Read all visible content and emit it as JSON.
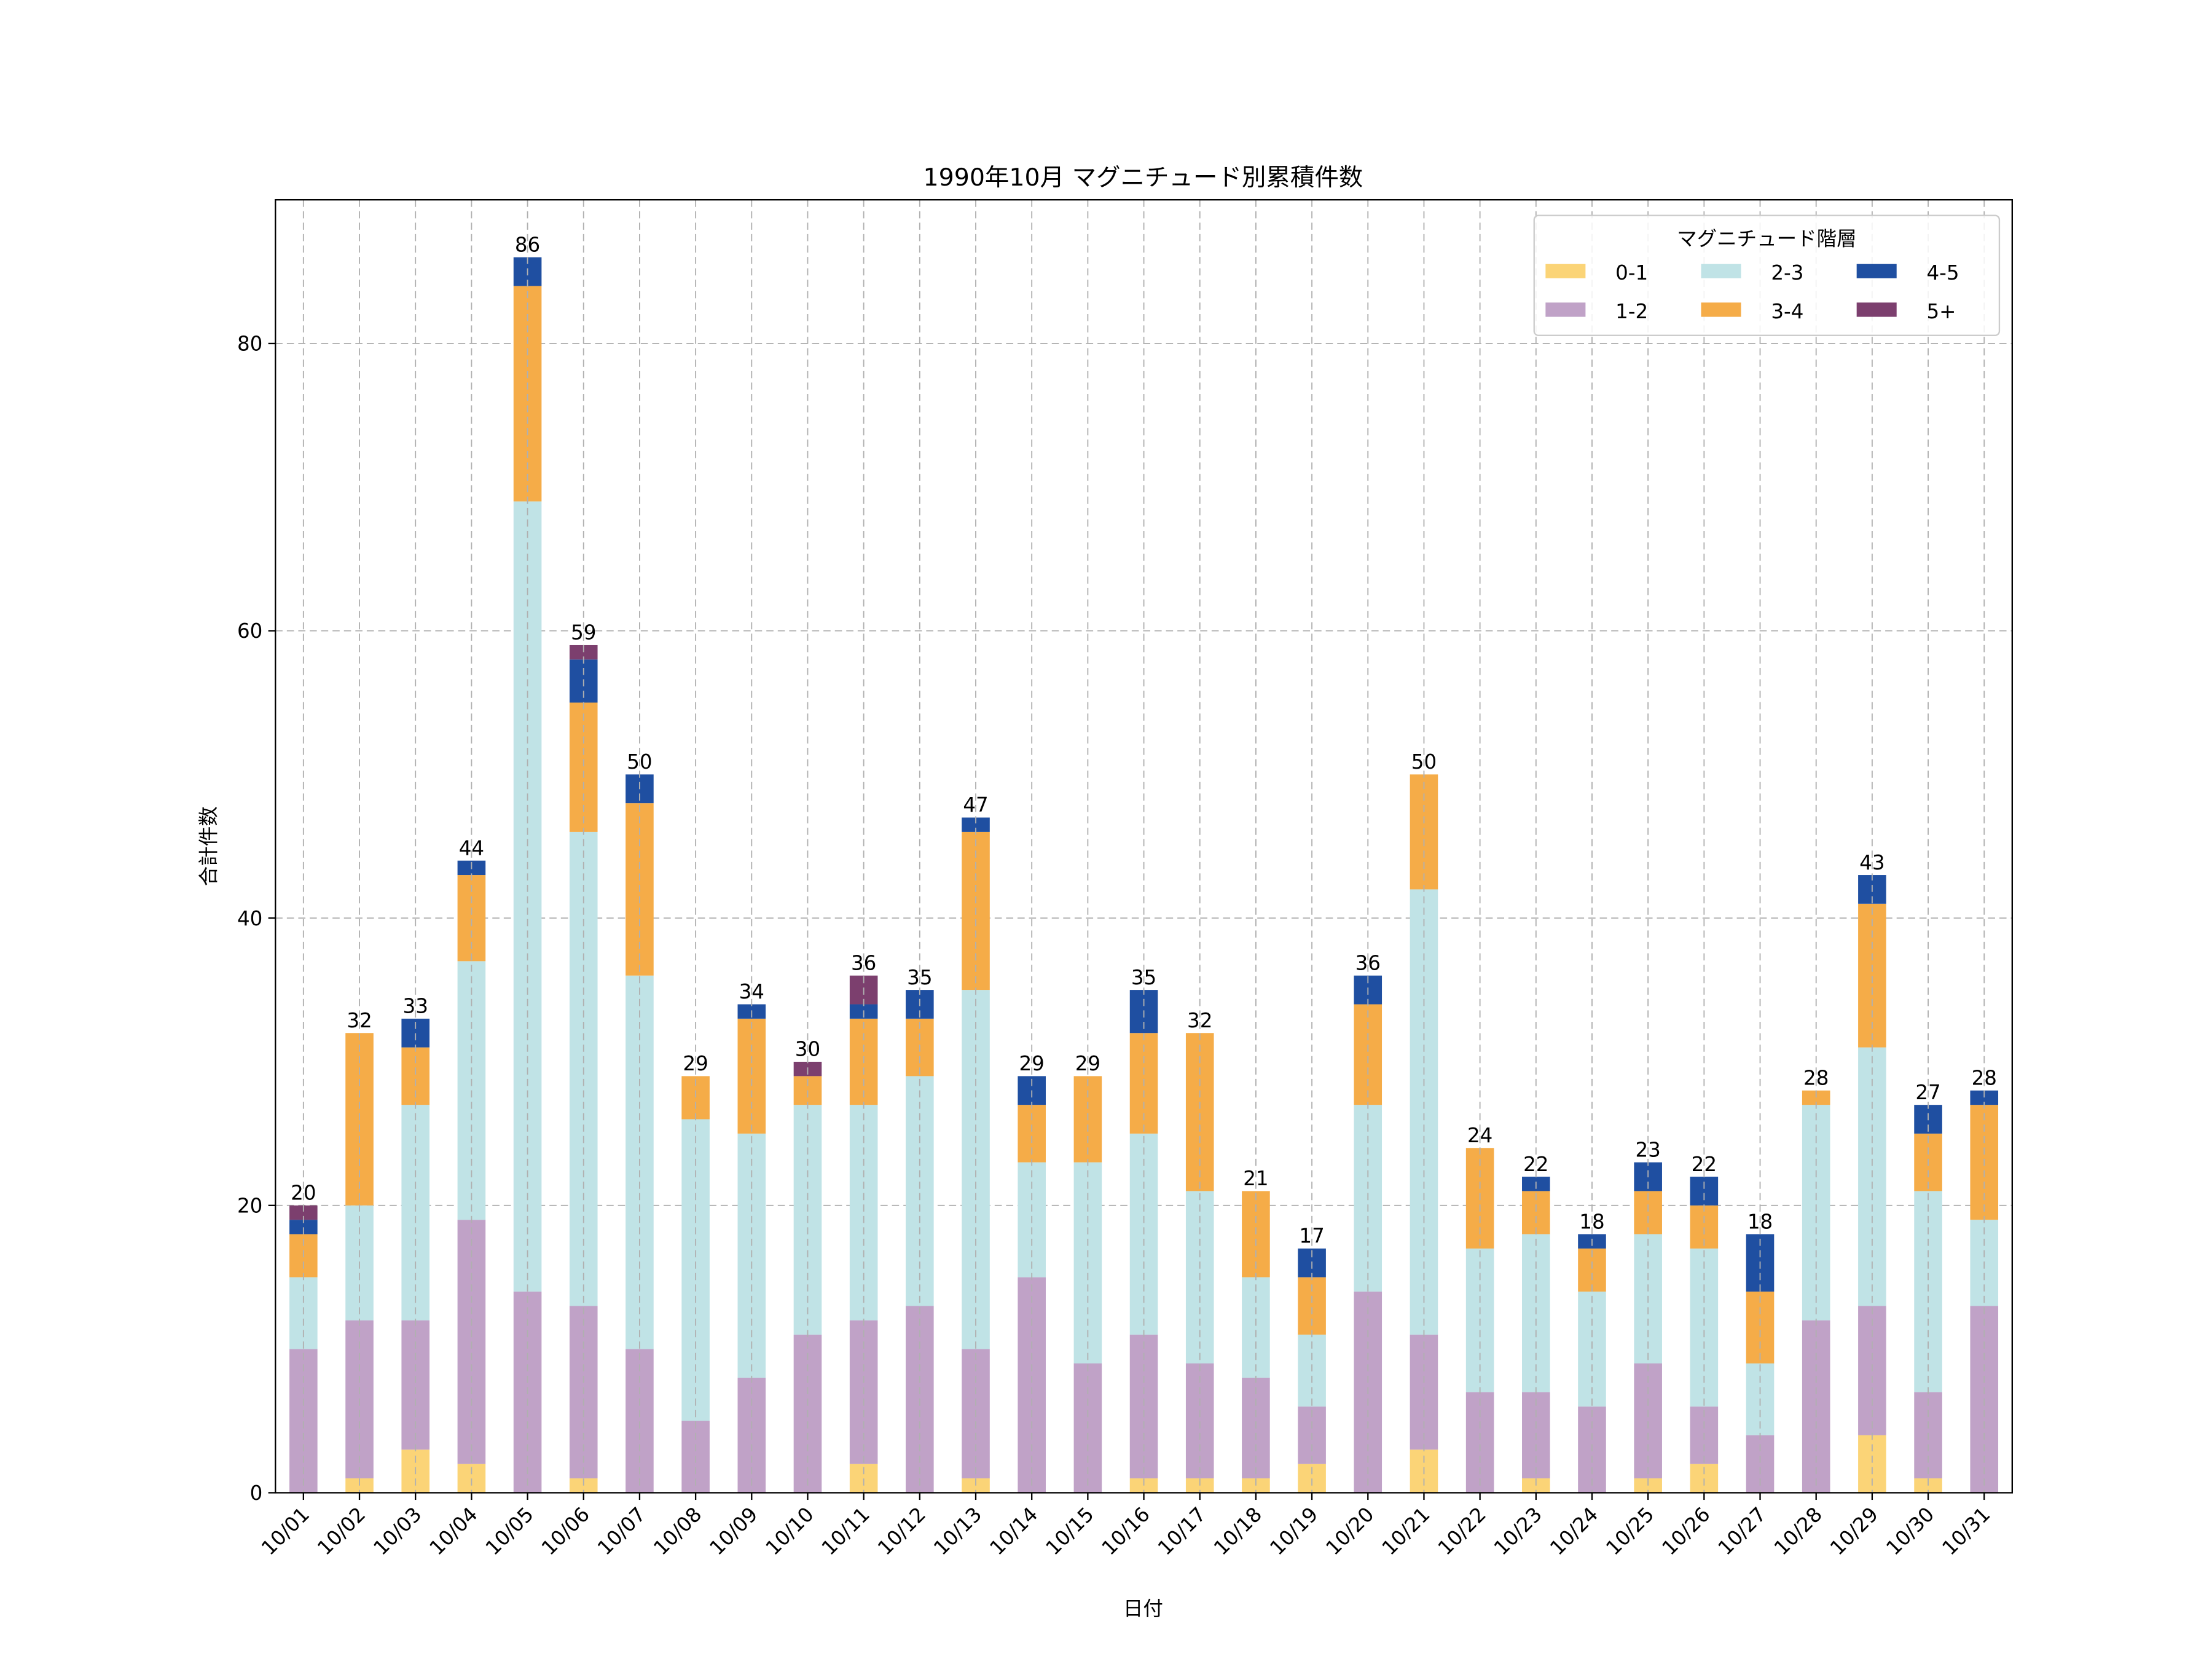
{
  "chart_data": {
    "type": "bar",
    "stacked": true,
    "title": "1990年10月 マグニチュード別累積件数",
    "xlabel": "日付",
    "ylabel": "合計件数",
    "ylim": [
      0,
      90
    ],
    "yticks": [
      0,
      20,
      40,
      60,
      80
    ],
    "grid": true,
    "legend": {
      "title": "マグニチュード階層",
      "placement": "top-right",
      "columns": 3
    },
    "categories": [
      "10/01",
      "10/02",
      "10/03",
      "10/04",
      "10/05",
      "10/06",
      "10/07",
      "10/08",
      "10/09",
      "10/10",
      "10/11",
      "10/12",
      "10/13",
      "10/14",
      "10/15",
      "10/16",
      "10/17",
      "10/18",
      "10/19",
      "10/20",
      "10/21",
      "10/22",
      "10/23",
      "10/24",
      "10/25",
      "10/26",
      "10/27",
      "10/28",
      "10/29",
      "10/30",
      "10/31"
    ],
    "series": [
      {
        "name": "0-1",
        "color": "#fbd477",
        "values": [
          0,
          1,
          3,
          2,
          0,
          1,
          0,
          0,
          0,
          0,
          2,
          0,
          1,
          0,
          0,
          1,
          1,
          1,
          2,
          0,
          3,
          0,
          1,
          0,
          1,
          2,
          0,
          0,
          4,
          1,
          0
        ]
      },
      {
        "name": "1-2",
        "color": "#c0a2c7",
        "values": [
          10,
          11,
          9,
          17,
          14,
          12,
          10,
          5,
          8,
          11,
          10,
          13,
          9,
          15,
          9,
          10,
          8,
          7,
          4,
          14,
          8,
          7,
          6,
          6,
          8,
          4,
          4,
          12,
          9,
          6,
          13
        ]
      },
      {
        "name": "2-3",
        "color": "#c0e3e6",
        "values": [
          5,
          8,
          15,
          18,
          55,
          33,
          26,
          21,
          17,
          16,
          15,
          16,
          25,
          8,
          14,
          14,
          12,
          7,
          5,
          13,
          31,
          10,
          11,
          8,
          9,
          11,
          5,
          15,
          18,
          14,
          6
        ]
      },
      {
        "name": "3-4",
        "color": "#f5ac48",
        "values": [
          3,
          12,
          4,
          6,
          15,
          9,
          12,
          3,
          8,
          2,
          6,
          4,
          11,
          4,
          6,
          7,
          11,
          6,
          4,
          7,
          8,
          7,
          3,
          3,
          3,
          3,
          5,
          1,
          10,
          4,
          8
        ]
      },
      {
        "name": "4-5",
        "color": "#1f4fa1",
        "values": [
          1,
          0,
          2,
          1,
          2,
          3,
          2,
          0,
          1,
          0,
          1,
          2,
          1,
          2,
          0,
          3,
          0,
          0,
          2,
          2,
          0,
          0,
          1,
          1,
          2,
          2,
          4,
          0,
          2,
          2,
          1
        ]
      },
      {
        "name": "5+",
        "color": "#7c3f6e",
        "values": [
          1,
          0,
          0,
          0,
          0,
          1,
          0,
          0,
          0,
          1,
          2,
          0,
          0,
          0,
          0,
          0,
          0,
          0,
          0,
          0,
          0,
          0,
          0,
          0,
          0,
          0,
          0,
          0,
          0,
          0,
          0
        ]
      }
    ],
    "totals": [
      20,
      32,
      33,
      44,
      86,
      59,
      50,
      29,
      34,
      30,
      36,
      35,
      47,
      29,
      29,
      35,
      32,
      21,
      17,
      36,
      50,
      24,
      22,
      18,
      23,
      22,
      18,
      28,
      43,
      27,
      28
    ]
  }
}
